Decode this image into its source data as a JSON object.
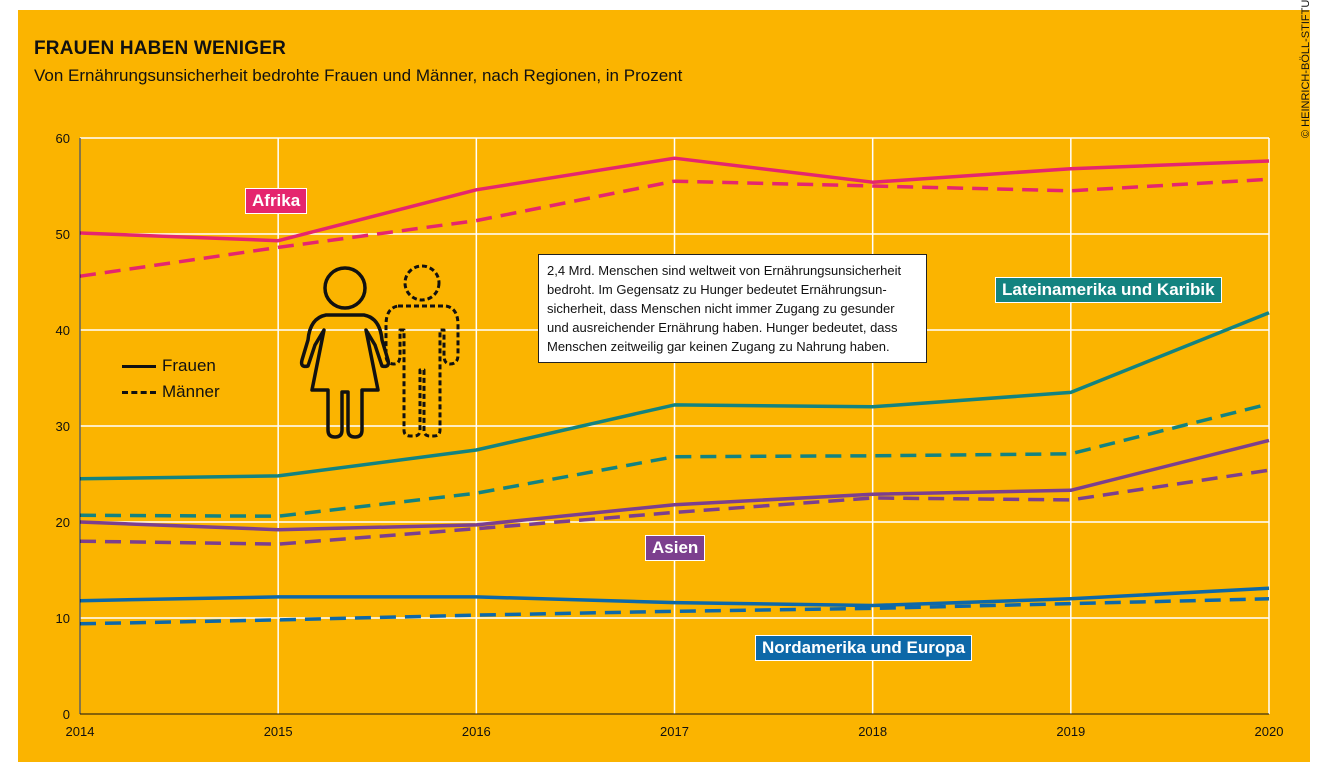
{
  "header": {
    "title": "FRAUEN HABEN WENIGER",
    "subtitle": "Von Ernährungsunsicherheit bedrohte Frauen und Männer, nach Regionen, in Prozent",
    "credit": "© HEINRICH-BÖLL-STIFTUNG / FAO ET AL"
  },
  "note": "2,4 Mrd. Menschen sind weltweit von Ernährungsunsicherheit bedroht. Im Gegensatz zu Hunger bedeutet Ernährungsun-sicherheit, dass Menschen nicht immer Zugang zu gesunder und ausreichender Ernährung haben. Hunger bedeutet, dass Menschen zeitweilig gar keinen Zugang zu Nahrung haben.",
  "legend": {
    "frauen": "Frauen",
    "maenner": "Männer"
  },
  "region_labels": {
    "afrika": "Afrika",
    "lateinamerika": "Lateinamerika und Karibik",
    "asien": "Asien",
    "nordamerika": "Nordamerika und Europa"
  },
  "colors": {
    "background": "#fbb400",
    "afrika": "#e5266e",
    "lateinamerika": "#138380",
    "asien": "#7c3f8e",
    "nordamerika": "#0d68a8",
    "grid": "#ffffff"
  },
  "chart_data": {
    "type": "line",
    "x": [
      2014,
      2015,
      2016,
      2017,
      2018,
      2019,
      2020
    ],
    "ylim": [
      0,
      60
    ],
    "yticks": [
      0,
      10,
      20,
      30,
      40,
      50,
      60
    ],
    "grid": true,
    "series": [
      {
        "name": "Afrika Frauen",
        "region": "afrika",
        "style": "solid",
        "values": [
          50.1,
          49.3,
          54.6,
          57.9,
          55.4,
          56.8,
          57.6
        ]
      },
      {
        "name": "Afrika Männer",
        "region": "afrika",
        "style": "dashed",
        "values": [
          45.6,
          48.6,
          51.4,
          55.5,
          55.0,
          54.5,
          55.7
        ]
      },
      {
        "name": "Lateinamerika und Karibik Frauen",
        "region": "lateinamerika",
        "style": "solid",
        "values": [
          24.5,
          24.8,
          27.5,
          32.2,
          32.0,
          33.5,
          41.8
        ]
      },
      {
        "name": "Lateinamerika und Karibik Männer",
        "region": "lateinamerika",
        "style": "dashed",
        "values": [
          20.7,
          20.6,
          23.0,
          26.8,
          26.9,
          27.1,
          32.3
        ]
      },
      {
        "name": "Asien Frauen",
        "region": "asien",
        "style": "solid",
        "values": [
          20.0,
          19.2,
          19.7,
          21.8,
          22.9,
          23.3,
          28.5
        ]
      },
      {
        "name": "Asien Männer",
        "region": "asien",
        "style": "dashed",
        "values": [
          18.0,
          17.7,
          19.3,
          21.0,
          22.5,
          22.3,
          25.4
        ]
      },
      {
        "name": "Nordamerika und Europa Frauen",
        "region": "nordamerika",
        "style": "solid",
        "values": [
          11.8,
          12.2,
          12.2,
          11.6,
          11.3,
          12.0,
          13.1
        ]
      },
      {
        "name": "Nordamerika und Europa Männer",
        "region": "nordamerika",
        "style": "dashed",
        "values": [
          9.4,
          9.8,
          10.3,
          10.7,
          11.0,
          11.5,
          12.0
        ]
      }
    ]
  }
}
